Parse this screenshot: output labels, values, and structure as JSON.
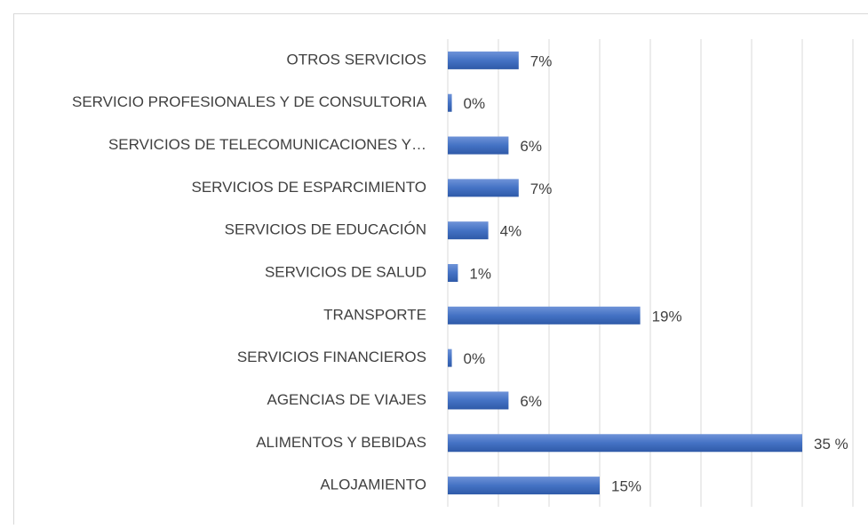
{
  "chart_data": {
    "type": "barh",
    "categories": [
      "OTROS SERVICIOS",
      "SERVICIO PROFESIONALES Y DE CONSULTORIA",
      "SERVICIOS DE TELECOMUNICACIONES Y…",
      "SERVICIOS DE ESPARCIMIENTO",
      "SERVICIOS DE EDUCACIÓN",
      "SERVICIOS DE SALUD",
      "TRANSPORTE",
      "SERVICIOS FINANCIEROS",
      "AGENCIAS DE VIAJES",
      "ALIMENTOS Y BEBIDAS",
      "ALOJAMIENTO"
    ],
    "values": [
      7,
      0.4,
      6,
      7,
      4,
      1,
      19,
      0.4,
      6,
      35,
      15
    ],
    "value_labels": [
      "7%",
      "0%",
      "6%",
      "7%",
      "4%",
      "1%",
      "19%",
      "0%",
      "6%",
      "35 %",
      "15%"
    ],
    "color": "#4472c4",
    "xlim": [
      0,
      40
    ],
    "xticks": [
      0,
      5,
      10,
      15,
      20,
      25,
      30,
      35,
      40
    ],
    "grid": true
  }
}
